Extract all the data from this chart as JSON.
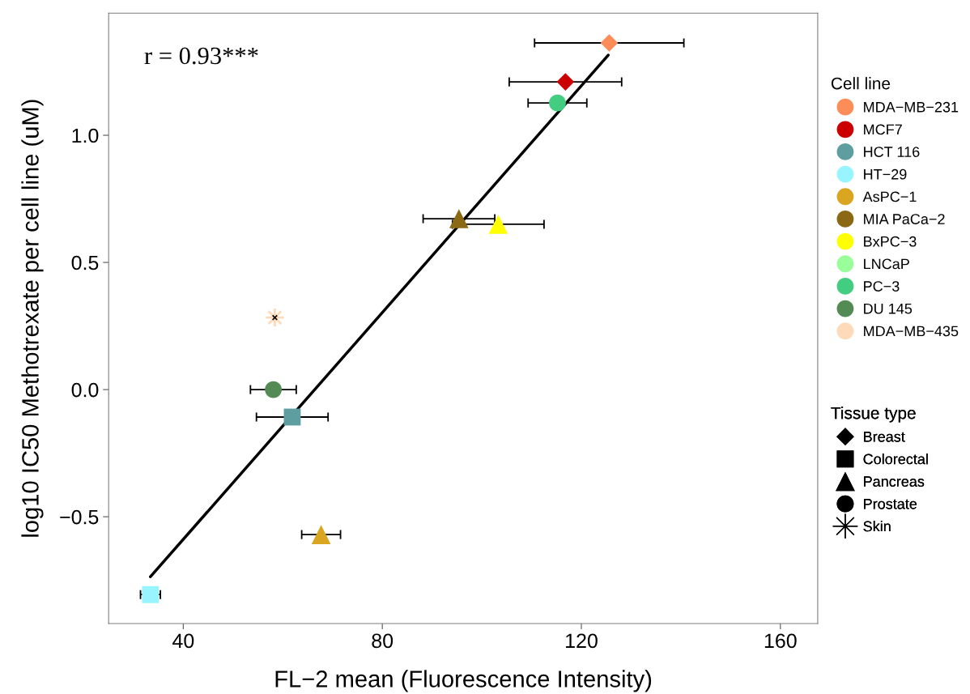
{
  "chart_data": {
    "type": "scatter",
    "xlabel": "FL−2 mean (Fluorescence Intensity)",
    "ylabel": "log10 IC50 Methotrexate per cell line (uM)",
    "xlim": [
      25,
      167.5
    ],
    "ylim": [
      -0.92,
      1.48
    ],
    "xticks": [
      40,
      80,
      120,
      160
    ],
    "yticks": [
      {
        "value": -0.5,
        "label": "−0.5"
      },
      {
        "value": 0,
        "label": "0.0"
      },
      {
        "value": 0.5,
        "label": "0.5"
      },
      {
        "value": 1.0,
        "label": "1.0"
      }
    ],
    "grid": false,
    "legend": "right",
    "legend_title": [
      "Cell line",
      "Tissue type"
    ],
    "annotations": [
      "r = 0.93***"
    ],
    "series": [
      {
        "name": "MDA−MB−231",
        "color": "#fc8d59",
        "marker": "diamond",
        "x": [
          125.6
        ],
        "values": [
          1.363
        ],
        "xerrors": [
          15.0
        ]
      },
      {
        "name": "MCF7",
        "color": "#cc0000",
        "marker": "diamond",
        "x": [
          116.8
        ],
        "values": [
          1.21
        ],
        "xerrors": [
          11.3
        ]
      },
      {
        "name": "HCT 116",
        "color": "#5f9ea0",
        "marker": "square",
        "x": [
          61.9
        ],
        "values": [
          -0.108
        ],
        "xerrors": [
          7.2
        ]
      },
      {
        "name": "HT−29",
        "color": "#98f5ff",
        "marker": "square",
        "x": [
          33.4
        ],
        "values": [
          -0.806
        ],
        "xerrors": [
          2.0
        ]
      },
      {
        "name": "AsPC−1",
        "color": "#daa520",
        "marker": "triangle",
        "x": [
          67.7
        ],
        "values": [
          -0.57
        ],
        "xerrors": [
          3.9
        ]
      },
      {
        "name": "MIA PaCa−2",
        "color": "#8b6914",
        "marker": "triangle",
        "x": [
          95.4
        ],
        "values": [
          0.672
        ],
        "xerrors": [
          7.2
        ]
      },
      {
        "name": "BxPC−3",
        "color": "#ffff00",
        "marker": "triangle",
        "x": [
          103.3
        ],
        "values": [
          0.65
        ],
        "xerrors": [
          9.2
        ]
      },
      {
        "name": "LNCaP",
        "color": "#9aff9a",
        "marker": "circle",
        "x": [
          null
        ],
        "values": [
          null
        ]
      },
      {
        "name": "PC−3",
        "color": "#43cd80",
        "marker": "circle",
        "x": [
          115.2
        ],
        "values": [
          1.127
        ],
        "xerrors": [
          5.9
        ]
      },
      {
        "name": "DU 145",
        "color": "#548b54",
        "marker": "circle",
        "x": [
          58.1
        ],
        "values": [
          0.0
        ],
        "xerrors": [
          4.6
        ]
      },
      {
        "name": "MDA−MB−435",
        "color": "#ffdab9",
        "marker": "star",
        "x": [
          58.4
        ],
        "values": [
          0.283
        ]
      },
      {
        "name": "Breast",
        "marker": "diamond",
        "x": [
          null
        ],
        "values": [
          null
        ]
      },
      {
        "name": "Colorectal",
        "marker": "square",
        "x": [
          null
        ],
        "values": [
          null
        ]
      },
      {
        "name": "Pancreas",
        "marker": "triangle",
        "x": [
          null
        ],
        "values": [
          null
        ]
      },
      {
        "name": "Prostate",
        "marker": "circle",
        "x": [
          null
        ],
        "values": [
          null
        ]
      },
      {
        "name": "Skin",
        "marker": "star",
        "x": [
          null
        ],
        "values": [
          null
        ]
      },
      {
        "type": "line",
        "color": "#000000",
        "x": [
          33.4,
          125.4
        ],
        "values": [
          -0.736,
          1.315
        ]
      }
    ]
  }
}
